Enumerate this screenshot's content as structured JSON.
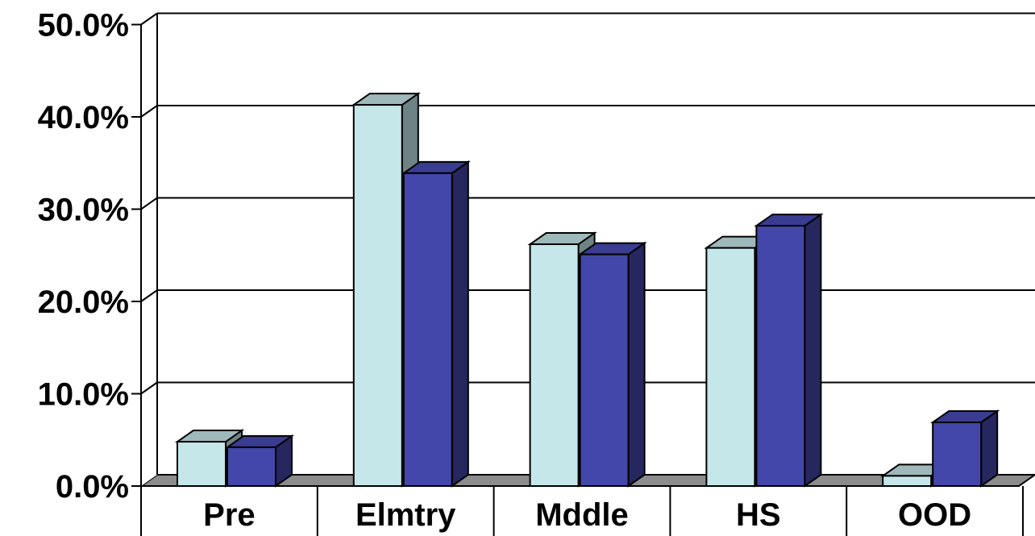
{
  "chart_data": {
    "type": "bar",
    "categories": [
      "Pre",
      "Elmtry",
      "Mddle",
      "HS",
      "OOD"
    ],
    "series": [
      {
        "values": [
          4.8,
          41.3,
          26.2,
          25.8,
          1.1
        ],
        "color": "#c6e7ea"
      },
      {
        "values": [
          4.2,
          33.9,
          25.1,
          28.2,
          6.9
        ],
        "color": "#4347a9"
      }
    ],
    "ylim": [
      0,
      50
    ],
    "yticks": [
      "0.0%",
      "10.0%",
      "20.0%",
      "30.0%",
      "40.0%",
      "50.0%"
    ],
    "tick_values": [
      0,
      10,
      20,
      30,
      40,
      50
    ],
    "grid": true,
    "legend": "none",
    "three_d": true
  }
}
